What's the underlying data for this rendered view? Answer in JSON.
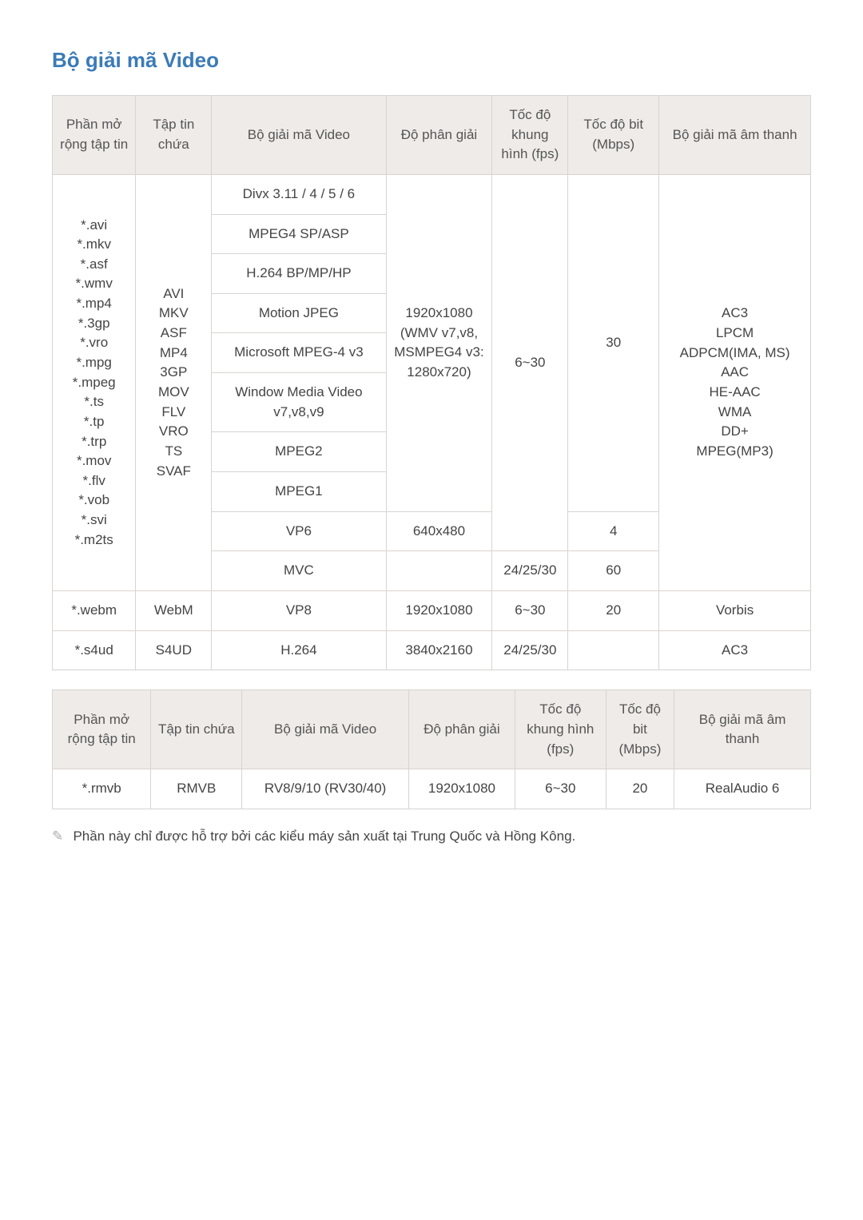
{
  "title": "Bộ giải mã Video",
  "headers": {
    "ext": "Phần mở rộng tập tin",
    "container": "Tập tin chứa",
    "vcodec": "Bộ giải mã Video",
    "resolution": "Độ phân giải",
    "fps": "Tốc độ khung hình (fps)",
    "bitrate": "Tốc độ bit (Mbps)",
    "acodec": "Bộ giải mã âm thanh",
    "bitrate2": "Tốc độ bit (Mbps)"
  },
  "table1": {
    "ext_list": "*.avi\n*.mkv\n*.asf\n*.wmv\n*.mp4\n*.3gp\n*.vro\n*.mpg\n*.mpeg\n*.ts\n*.tp\n*.trp\n*.mov\n*.flv\n*.vob\n*.svi\n*.m2ts",
    "container_list": "AVI\nMKV\nASF\nMP4\n3GP\nMOV\nFLV\nVRO\nTS\nSVAF",
    "vcodecs": {
      "divx": "Divx 3.11 / 4 / 5 / 6",
      "mpeg4": "MPEG4 SP/ASP",
      "h264": "H.264 BP/MP/HP",
      "mjpeg": "Motion JPEG",
      "msmpeg4": "Microsoft MPEG-4 v3",
      "wmv": "Window Media Video v7,v8,v9",
      "mpeg2": "MPEG2",
      "mpeg1": "MPEG1",
      "vp6": "VP6",
      "mvc": "MVC"
    },
    "res_main": "1920x1080\n(WMV v7,v8, MSMPEG4 v3: 1280x720)",
    "fps_main": "6~30",
    "bitrate_main": "30",
    "acodec_main": "AC3\nLPCM\nADPCM(IMA, MS)\nAAC\nHE-AAC\nWMA\nDD+\nMPEG(MP3)",
    "vp6_res": "640x480",
    "vp6_bitrate": "4",
    "mvc_fps": "24/25/30",
    "mvc_bitrate": "60",
    "webm": {
      "ext": "*.webm",
      "container": "WebM",
      "vcodec": "VP8",
      "res": "1920x1080",
      "fps": "6~30",
      "bitrate": "20",
      "acodec": "Vorbis"
    },
    "s4ud": {
      "ext": "*.s4ud",
      "container": "S4UD",
      "vcodec": "H.264",
      "res": "3840x2160",
      "fps": "24/25/30",
      "bitrate": "",
      "acodec": "AC3"
    }
  },
  "table2": {
    "row": {
      "ext": "*.rmvb",
      "container": "RMVB",
      "vcodec": "RV8/9/10 (RV30/40)",
      "res": "1920x1080",
      "fps": "6~30",
      "bitrate": "20",
      "acodec": "RealAudio 6"
    }
  },
  "note": "Phần này chỉ được hỗ trợ bởi các kiểu máy sản xuất tại Trung Quốc và Hồng Kông.",
  "note_icon": "✎"
}
